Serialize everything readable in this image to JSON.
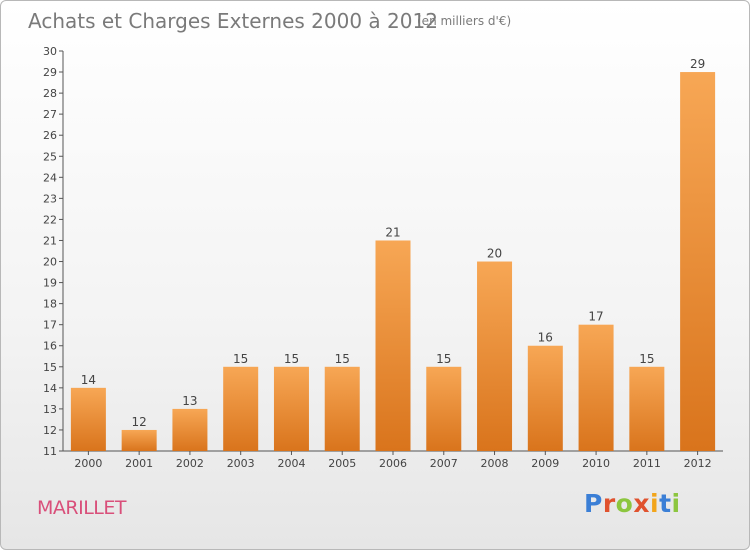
{
  "title": "Achats et Charges Externes 2000 à 2012",
  "subtitle": "(en milliers d'€)",
  "commune": "MARILLET",
  "logo": {
    "letters": [
      "P",
      "r",
      "o",
      "x",
      "i",
      "t",
      "i"
    ],
    "colors": [
      "#3b7fd6",
      "#e0522e",
      "#8cc63f",
      "#e0522e",
      "#f2a51b",
      "#3b7fd6",
      "#8cc63f"
    ]
  },
  "colors": {
    "bar_top": "#f7a755",
    "bar_bottom": "#d9741c",
    "axis": "#555555",
    "grid": "#d8d8d8"
  },
  "chart_data": {
    "type": "bar",
    "title": "Achats et Charges Externes 2000 à 2012",
    "subtitle": "(en milliers d'€)",
    "categories": [
      "2000",
      "2001",
      "2002",
      "2003",
      "2004",
      "2005",
      "2006",
      "2007",
      "2008",
      "2009",
      "2010",
      "2011",
      "2012"
    ],
    "values": [
      14,
      12,
      13,
      15,
      15,
      15,
      21,
      15,
      20,
      16,
      17,
      15,
      29
    ],
    "ylim": [
      11,
      30
    ],
    "yticks": [
      11,
      12,
      13,
      14,
      15,
      16,
      17,
      18,
      19,
      20,
      21,
      22,
      23,
      24,
      25,
      26,
      27,
      28,
      29,
      30
    ],
    "xlabel": "",
    "ylabel": "",
    "grid": false,
    "data_labels": true
  }
}
